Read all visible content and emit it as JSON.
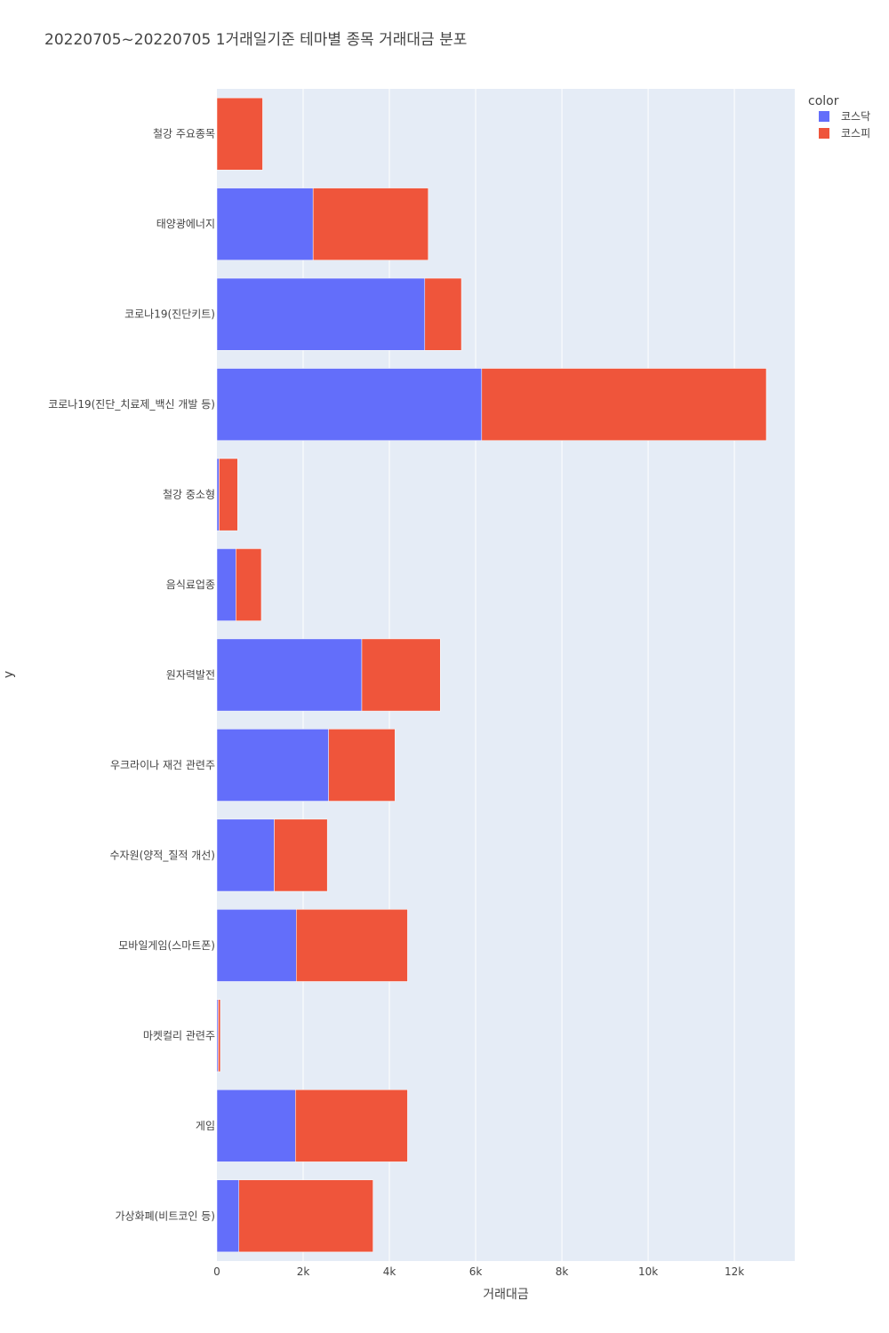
{
  "chart_data": {
    "type": "bar",
    "orientation": "horizontal",
    "barmode": "stack",
    "title": "20220705~20220705 1거래일기준 테마별 종목 거래대금 분포",
    "xlabel": "거래대금",
    "ylabel": "y",
    "xlim": [
      0,
      13400
    ],
    "xticks": [
      0,
      2000,
      4000,
      6000,
      8000,
      10000,
      12000
    ],
    "xtick_labels": [
      "0",
      "2k",
      "4k",
      "6k",
      "8k",
      "10k",
      "12k"
    ],
    "legend_title": "color",
    "legend_position": "top-right",
    "grid": true,
    "categories": [
      "철강 주요종목",
      "태양광에너지",
      "코로나19(진단키트)",
      "코로나19(진단_치료제_백신 개발 등)",
      "철강 중소형",
      "음식료업종",
      "원자력발전",
      "우크라이나 재건 관련주",
      "수자원(양적_질적 개선)",
      "모바일게임(스마트폰)",
      "마켓컬리 관련주",
      "게임",
      "가상화폐(비트코인 등)"
    ],
    "series": [
      {
        "name": "코스닥",
        "color": "#636efa",
        "values": [
          0,
          2230,
          4820,
          6140,
          50,
          440,
          3360,
          2590,
          1330,
          1840,
          30,
          1820,
          510
        ]
      },
      {
        "name": "코스피",
        "color": "#ef553b",
        "values": [
          1060,
          2670,
          850,
          6600,
          430,
          590,
          1820,
          1540,
          1230,
          2580,
          50,
          2600,
          3110
        ]
      }
    ]
  },
  "colors": {
    "plot_background": "#e5ecf6",
    "grid": "#ffffff",
    "text": "#444444"
  }
}
